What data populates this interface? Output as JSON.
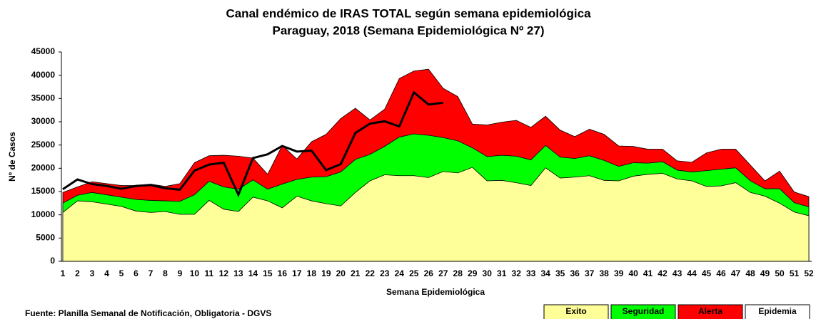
{
  "chart_data": {
    "type": "area",
    "title": "Canal endémico de IRAS TOTAL según semana epidemiológica",
    "subtitle": "Paraguay, 2018 (Semana Epidemiológica Nº 27)",
    "y_label": "Nº de Casos",
    "x_label": "Semana Epidemiológica",
    "source": "Fuente: Planilla Semanal de Notificación, Obligatoria - DGVS",
    "categories": [
      1,
      2,
      3,
      4,
      5,
      6,
      7,
      8,
      9,
      10,
      11,
      12,
      13,
      14,
      15,
      16,
      17,
      18,
      19,
      20,
      21,
      22,
      23,
      24,
      25,
      26,
      27,
      28,
      29,
      30,
      31,
      32,
      33,
      34,
      35,
      36,
      37,
      38,
      39,
      40,
      41,
      42,
      43,
      44,
      45,
      46,
      47,
      48,
      49,
      50,
      51,
      52
    ],
    "ylim": [
      0,
      45000
    ],
    "yticks": [
      0,
      5000,
      10000,
      15000,
      20000,
      25000,
      30000,
      35000,
      40000,
      45000
    ],
    "series": [
      {
        "name": "Alerta",
        "color": "#ff0000",
        "values": [
          14800,
          16000,
          17100,
          16700,
          16300,
          16300,
          16600,
          16100,
          16700,
          21200,
          22700,
          22800,
          22600,
          22200,
          18700,
          24900,
          22000,
          25700,
          27300,
          30700,
          32900,
          30400,
          32700,
          39300,
          40900,
          41300,
          37200,
          35400,
          29500,
          29300,
          29900,
          30300,
          28800,
          31200,
          28200,
          26800,
          28400,
          27300,
          24800,
          24700,
          24100,
          24100,
          21600,
          21300,
          23300,
          24100,
          24100,
          20700,
          17300,
          19400,
          14900,
          13900
        ]
      },
      {
        "name": "Seguridad",
        "color": "#00ff00",
        "values": [
          12500,
          14200,
          14800,
          14300,
          13800,
          13300,
          13100,
          13000,
          12900,
          14300,
          17200,
          16000,
          15500,
          17500,
          15500,
          16600,
          17600,
          18100,
          18200,
          19200,
          21900,
          23000,
          24700,
          26700,
          27400,
          27100,
          26600,
          25900,
          24400,
          22500,
          22800,
          22600,
          21800,
          24900,
          22400,
          22100,
          22700,
          21700,
          20400,
          21200,
          21100,
          21400,
          19600,
          19200,
          19500,
          19800,
          20100,
          17300,
          15600,
          15600,
          12600,
          11700
        ]
      },
      {
        "name": "Exito",
        "color": "#ffff99",
        "values": [
          10500,
          13000,
          12800,
          12300,
          11800,
          10800,
          10500,
          10700,
          10100,
          10100,
          13100,
          11200,
          10700,
          13800,
          13000,
          11500,
          14000,
          13000,
          12400,
          11900,
          14800,
          17300,
          18600,
          18400,
          18400,
          18000,
          19300,
          19000,
          20200,
          17300,
          17400,
          16900,
          16300,
          20100,
          17900,
          18100,
          18400,
          17400,
          17300,
          18300,
          18700,
          18900,
          17700,
          17300,
          16100,
          16200,
          16900,
          14800,
          14000,
          12500,
          10600,
          9800
        ]
      }
    ],
    "epidemia": {
      "name": "Epidemia",
      "color": "#ffffff"
    },
    "cases": {
      "color": "#000000",
      "values": [
        15500,
        17600,
        16600,
        16200,
        15600,
        16200,
        16400,
        15700,
        15400,
        19500,
        20800,
        21200,
        14300,
        22200,
        23000,
        24800,
        23600,
        23800,
        19600,
        20900,
        27600,
        29600,
        30100,
        29000,
        36300,
        33700,
        34100
      ]
    }
  }
}
